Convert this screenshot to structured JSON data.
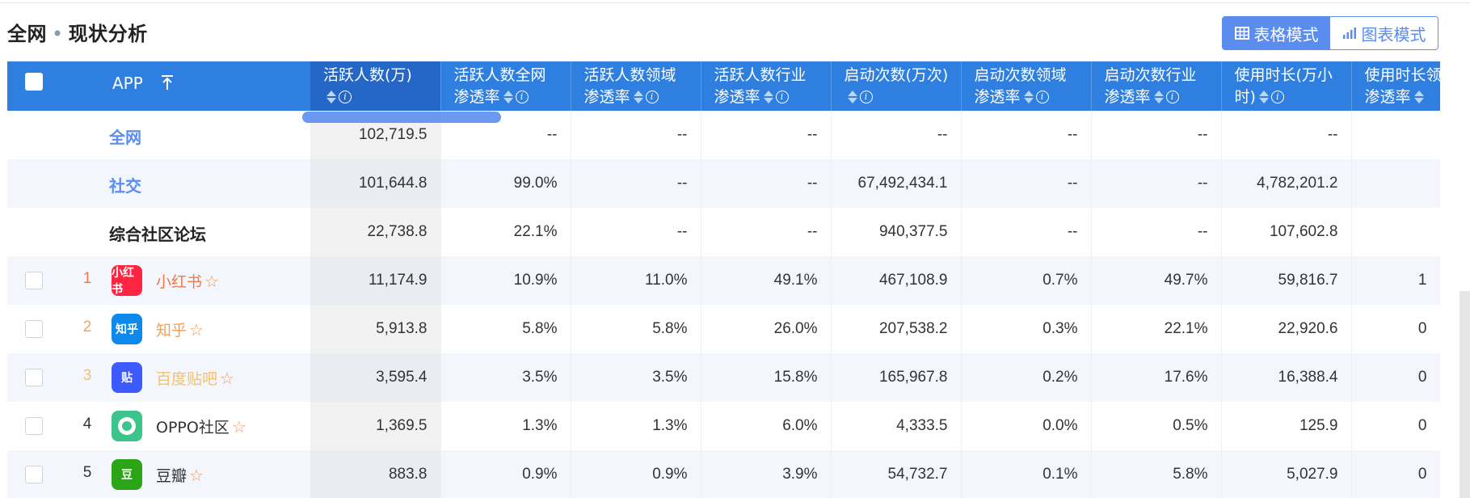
{
  "page": {
    "title_main": "全网",
    "title_sep": "•",
    "title_sub": "现状分析"
  },
  "mode_switch": {
    "table_mode": "表格模式",
    "chart_mode": "图表模式"
  },
  "colors": {
    "header_bg": "#2f7fe0",
    "accent": "#5b8def",
    "rank1": "#f2784b",
    "rank2": "#f3a25e",
    "rank3": "#f5c06a",
    "star": "#f29a5c"
  },
  "table": {
    "columns": [
      {
        "l1": "APP",
        "l2": ""
      },
      {
        "l1": "活跃人数(万)",
        "l2": ""
      },
      {
        "l1": "活跃人数全网",
        "l2": "渗透率"
      },
      {
        "l1": "活跃人数领域",
        "l2": "渗透率"
      },
      {
        "l1": "活跃人数行业",
        "l2": "渗透率"
      },
      {
        "l1": "启动次数(万次)",
        "l2": ""
      },
      {
        "l1": "启动次数领域",
        "l2": "渗透率"
      },
      {
        "l1": "启动次数行业",
        "l2": "渗透率"
      },
      {
        "l1": "使用时长(万小",
        "l2": "时)"
      },
      {
        "l1": "使用时长领",
        "l2": "渗透率"
      }
    ],
    "summary_rows": [
      {
        "label": "全网",
        "values": [
          "102,719.5",
          "--",
          "--",
          "--",
          "--",
          "--",
          "--",
          "--",
          ""
        ]
      },
      {
        "label": "社交",
        "values": [
          "101,644.8",
          "99.0%",
          "--",
          "--",
          "67,492,434.1",
          "--",
          "--",
          "4,782,201.2",
          ""
        ]
      },
      {
        "label": "综合社区论坛",
        "values": [
          "22,738.8",
          "22.1%",
          "--",
          "--",
          "940,377.5",
          "--",
          "--",
          "107,602.8",
          ""
        ]
      }
    ],
    "app_rows": [
      {
        "rank": "1",
        "name": "小红书",
        "logo_text": "小红书",
        "logo_color": "#ff2442",
        "values": [
          "11,174.9",
          "10.9%",
          "11.0%",
          "49.1%",
          "467,108.9",
          "0.7%",
          "49.7%",
          "59,816.7",
          "1"
        ]
      },
      {
        "rank": "2",
        "name": "知乎",
        "logo_text": "知乎",
        "logo_color": "#0f88eb",
        "values": [
          "5,913.8",
          "5.8%",
          "5.8%",
          "26.0%",
          "207,538.2",
          "0.3%",
          "22.1%",
          "22,920.6",
          "0"
        ]
      },
      {
        "rank": "3",
        "name": "百度贴吧",
        "logo_text": "贴",
        "logo_color": "#3d5afe",
        "values": [
          "3,595.4",
          "3.5%",
          "3.5%",
          "15.8%",
          "165,967.8",
          "0.2%",
          "17.6%",
          "16,388.4",
          "0"
        ]
      },
      {
        "rank": "4",
        "name": "OPPO社区",
        "logo_text": "",
        "logo_color": "#3cc48a",
        "values": [
          "1,369.5",
          "1.3%",
          "1.3%",
          "6.0%",
          "4,333.5",
          "0.0%",
          "0.5%",
          "125.9",
          "0"
        ]
      },
      {
        "rank": "5",
        "name": "豆瓣",
        "logo_text": "豆",
        "logo_color": "#2aa515",
        "values": [
          "883.8",
          "0.9%",
          "0.9%",
          "3.9%",
          "54,732.7",
          "0.1%",
          "5.8%",
          "5,027.9",
          "0"
        ]
      }
    ]
  }
}
